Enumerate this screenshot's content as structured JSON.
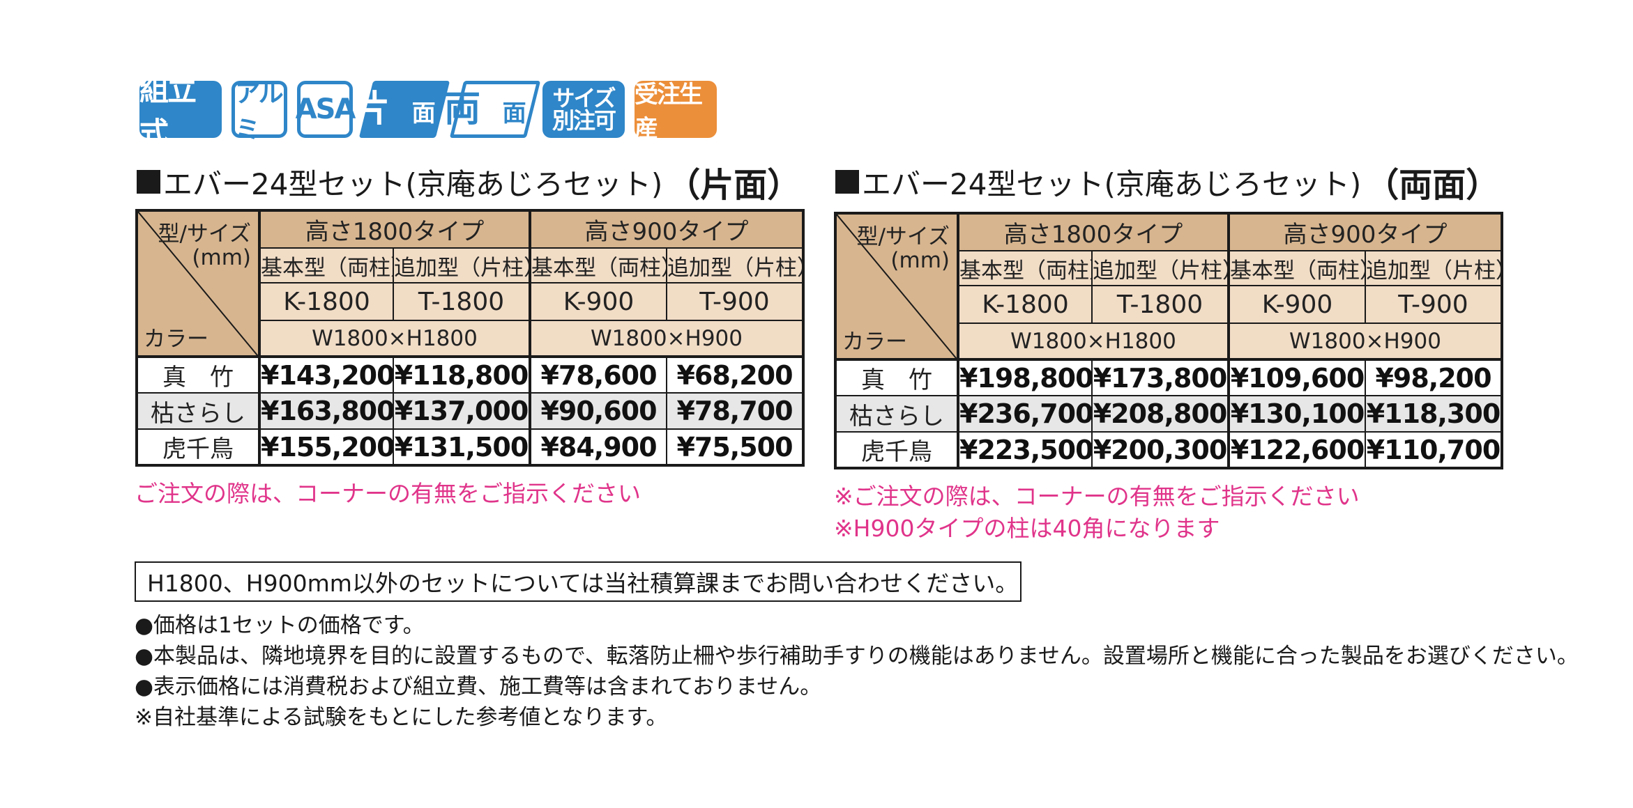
{
  "badges": [
    {
      "label": "組立式"
    },
    {
      "label": "アルミ"
    },
    {
      "label": "ASA"
    },
    {
      "label_a": "片",
      "label_b": "面"
    },
    {
      "label_a": "両",
      "label_b": "面"
    },
    {
      "label_a": "サイズ",
      "label_b": "別注可"
    },
    {
      "label": "受注生産"
    }
  ],
  "tables": [
    {
      "title": "エバー24型セット(京庵あじろセット)",
      "suffix": "（片面）",
      "corner": {
        "type_size": "型/サイズ",
        "unit": "(mm)",
        "color": "カラー"
      },
      "groups": [
        {
          "label": "高さ1800タイプ",
          "dim": "W1800×H1800"
        },
        {
          "label": "高さ900タイプ",
          "dim": "W1800×H900"
        }
      ],
      "subs": [
        "基本型（両柱）",
        "追加型（片柱）",
        "基本型（両柱）",
        "追加型（片柱）"
      ],
      "codes": [
        "K-1800",
        "T-1800",
        "K-900",
        "T-900"
      ],
      "rows": [
        {
          "color": "真　竹",
          "prices": [
            "¥143,200",
            "¥118,800",
            "¥78,600",
            "¥68,200"
          ]
        },
        {
          "color": "枯さらし",
          "prices": [
            "¥163,800",
            "¥137,000",
            "¥90,600",
            "¥78,700"
          ]
        },
        {
          "color": "虎千鳥",
          "prices": [
            "¥155,200",
            "¥131,500",
            "¥84,900",
            "¥75,500"
          ]
        }
      ],
      "notes": [
        "ご注文の際は、コーナーの有無をご指示ください"
      ]
    },
    {
      "title": "エバー24型セット(京庵あじろセット)",
      "suffix": "（両面）",
      "corner": {
        "type_size": "型/サイズ",
        "unit": "(mm)",
        "color": "カラー"
      },
      "groups": [
        {
          "label": "高さ1800タイプ",
          "dim": "W1800×H1800"
        },
        {
          "label": "高さ900タイプ",
          "dim": "W1800×H900"
        }
      ],
      "subs": [
        "基本型（両柱）",
        "追加型（片柱）",
        "基本型（両柱）",
        "追加型（片柱）"
      ],
      "codes": [
        "K-1800",
        "T-1800",
        "K-900",
        "T-900"
      ],
      "rows": [
        {
          "color": "真　竹",
          "prices": [
            "¥198,800",
            "¥173,800",
            "¥109,600",
            "¥98,200"
          ]
        },
        {
          "color": "枯さらし",
          "prices": [
            "¥236,700",
            "¥208,800",
            "¥130,100",
            "¥118,300"
          ]
        },
        {
          "color": "虎千鳥",
          "prices": [
            "¥223,500",
            "¥200,300",
            "¥122,600",
            "¥110,700"
          ]
        }
      ],
      "notes": [
        "※ご注文の際は、コーナーの有無をご指示ください",
        "※H900タイプの柱は40角になります"
      ]
    }
  ],
  "box_note": "H1800、H900mm以外のセットについては当社積算課までお問い合わせください。",
  "footnotes": [
    "●価格は1セットの価格です。",
    "●本製品は、隣地境界を目的に設置するもので、転落防止柵や歩行補助手すりの機能はありません。設置場所と機能に合った製品をお選びください。",
    "●表示価格には消費税および組立費、施工費等は含まれておりません。",
    "※自社基準による試験をもとにした参考値となります。"
  ],
  "colors": {
    "accent_blue": "#2f86c8",
    "accent_orange": "#ec8f3a",
    "header_tan": "#d7b58f",
    "header_light": "#f1dcc6",
    "note_pink": "#e0348a"
  }
}
